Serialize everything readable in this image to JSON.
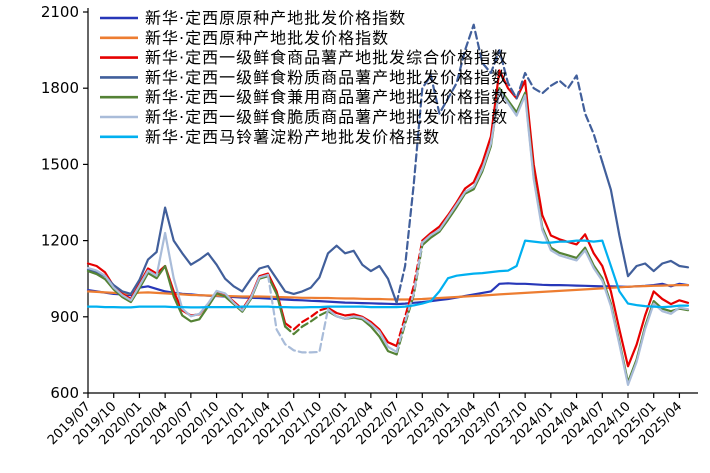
{
  "chart_data": {
    "type": "line",
    "title": "",
    "xlabel": "",
    "ylabel": "",
    "grid": false,
    "legend_position": "top-left-inside",
    "ylim": [
      600,
      2100
    ],
    "y_ticks": [
      600,
      900,
      1200,
      1500,
      1800,
      2100
    ],
    "x_tick_step": 3,
    "n_points": 71,
    "x_labels": [
      "2019/07",
      "2019/10",
      "2020/01",
      "2020/04",
      "2020/07",
      "2020/10",
      "2021/01",
      "2021/04",
      "2021/07",
      "2021/10",
      "2022/01",
      "2022/04",
      "2022/07",
      "2022/10",
      "2023/01",
      "2023/04",
      "2023/07",
      "2023/10",
      "2024/01",
      "2024/04",
      "2024/07",
      "2024/10",
      "2025/01",
      "2025/04"
    ],
    "axis_color": "#000000",
    "series": [
      {
        "id": "yuanyuanzhong",
        "name": "新华·定西原原种产地批发价格指数",
        "color": "#2737B8",
        "width": 2.2,
        "dash": [],
        "values": [
          1005,
          1000,
          995,
          990,
          988,
          985,
          1015,
          1020,
          1010,
          1000,
          995,
          990,
          988,
          985,
          983,
          982,
          980,
          978,
          976,
          975,
          974,
          972,
          970,
          968,
          966,
          965,
          963,
          962,
          960,
          958,
          956,
          955,
          954,
          953,
          952,
          951,
          950,
          952,
          955,
          958,
          962,
          966,
          970,
          976,
          982,
          988,
          994,
          1000,
          1030,
          1032,
          1030,
          1030,
          1028,
          1026,
          1025,
          1025,
          1024,
          1023,
          1022,
          1021,
          1020,
          1020,
          1019,
          1018,
          1020,
          1022,
          1025,
          1030,
          1020,
          1030,
          1025
        ]
      },
      {
        "id": "yuanzhong",
        "name": "新华·定西原种产地批发价格指数",
        "color": "#ED7D31",
        "width": 2.2,
        "dash": [],
        "values": [
          1000,
          998,
          996,
          994,
          992,
          990,
          995,
          996,
          994,
          992,
          990,
          988,
          986,
          985,
          984,
          983,
          982,
          981,
          980,
          980,
          980,
          979,
          978,
          977,
          976,
          975,
          975,
          974,
          974,
          973,
          972,
          972,
          971,
          970,
          970,
          969,
          968,
          968,
          969,
          970,
          972,
          974,
          976,
          978,
          980,
          982,
          984,
          986,
          988,
          990,
          992,
          994,
          996,
          998,
          1000,
          1002,
          1004,
          1006,
          1008,
          1010,
          1012,
          1014,
          1016,
          1018,
          1020,
          1021,
          1022,
          1023,
          1024,
          1025,
          1025
        ]
      },
      {
        "id": "xianshi-zonghe",
        "name": "新华·定西一级鲜食商品薯产地批发综合价格指数",
        "color": "#E60000",
        "width": 2.2,
        "dash": [
          [
            23,
            28
          ],
          [
            36,
            39
          ]
        ],
        "values": [
          1110,
          1100,
          1075,
          1020,
          990,
          970,
          1030,
          1090,
          1070,
          1100,
          1000,
          925,
          905,
          910,
          950,
          1000,
          990,
          960,
          930,
          980,
          1060,
          1070,
          1000,
          875,
          850,
          880,
          900,
          925,
          935,
          915,
          905,
          910,
          900,
          880,
          850,
          800,
          785,
          900,
          1020,
          1200,
          1230,
          1255,
          1300,
          1350,
          1405,
          1430,
          1505,
          1610,
          1870,
          1800,
          1760,
          1830,
          1500,
          1300,
          1220,
          1205,
          1195,
          1185,
          1225,
          1150,
          1100,
          1000,
          850,
          705,
          790,
          905,
          1000,
          970,
          950,
          965,
          955
        ]
      },
      {
        "id": "xianshi-fenzhi",
        "name": "新华·定西一级鲜食粉质商品薯产地批发价格指数",
        "color": "#415F9B",
        "width": 2.2,
        "dash": [
          [
            36,
            60
          ]
        ],
        "values": [
          1085,
          1075,
          1060,
          1025,
          1000,
          990,
          1045,
          1125,
          1155,
          1330,
          1200,
          1150,
          1105,
          1125,
          1150,
          1105,
          1050,
          1020,
          1000,
          1050,
          1090,
          1100,
          1050,
          1000,
          990,
          1000,
          1015,
          1055,
          1150,
          1180,
          1150,
          1160,
          1105,
          1080,
          1100,
          1050,
          955,
          1100,
          1420,
          1800,
          1850,
          1700,
          1760,
          1820,
          1950,
          2050,
          1900,
          1860,
          1950,
          1820,
          1760,
          1860,
          1800,
          1780,
          1810,
          1830,
          1800,
          1850,
          1700,
          1620,
          1510,
          1400,
          1220,
          1060,
          1100,
          1110,
          1080,
          1110,
          1120,
          1100,
          1095
        ]
      },
      {
        "id": "xianshi-jianyong",
        "name": "新华·定西一级鲜食兼用商品薯产地批发价格指数",
        "color": "#548235",
        "width": 2.2,
        "dash": [
          [
            23,
            28
          ],
          [
            36,
            39
          ]
        ],
        "values": [
          1080,
          1068,
          1048,
          1008,
          978,
          958,
          1012,
          1072,
          1052,
          1100,
          980,
          905,
          882,
          890,
          940,
          992,
          980,
          950,
          920,
          970,
          1050,
          1060,
          990,
          862,
          832,
          862,
          882,
          905,
          922,
          902,
          892,
          897,
          890,
          862,
          822,
          765,
          752,
          872,
          985,
          1182,
          1212,
          1235,
          1282,
          1332,
          1385,
          1402,
          1472,
          1572,
          1800,
          1752,
          1705,
          1782,
          1452,
          1252,
          1172,
          1152,
          1142,
          1132,
          1172,
          1102,
          1052,
          952,
          802,
          642,
          732,
          862,
          962,
          932,
          922,
          932,
          926
        ]
      },
      {
        "id": "xianshi-cuizhi",
        "name": "新华·定西一级鲜食脆质商品薯产地批发价格指数",
        "color": "#A9BCD9",
        "width": 2.2,
        "dash": [
          [
            21,
            28
          ],
          [
            36,
            39
          ]
        ],
        "values": [
          1092,
          1082,
          1062,
          1015,
          985,
          965,
          1022,
          1082,
          1062,
          1230,
          1052,
          932,
          902,
          912,
          952,
          1002,
          992,
          955,
          925,
          975,
          1055,
          1065,
          850,
          792,
          768,
          760,
          760,
          762,
          930,
          902,
          892,
          902,
          896,
          872,
          842,
          782,
          762,
          882,
          992,
          1192,
          1222,
          1242,
          1292,
          1342,
          1392,
          1412,
          1482,
          1582,
          1790,
          1742,
          1692,
          1772,
          1442,
          1242,
          1162,
          1142,
          1132,
          1122,
          1162,
          1092,
          1042,
          942,
          792,
          632,
          722,
          852,
          952,
          922,
          912,
          936,
          930
        ]
      },
      {
        "id": "dianfen",
        "name": "新华·定西马铃薯淀粉产地批发价格指数",
        "color": "#00B0F0",
        "width": 2.2,
        "dash": [],
        "values": [
          940,
          940,
          938,
          938,
          937,
          937,
          940,
          940,
          940,
          940,
          938,
          938,
          937,
          937,
          938,
          938,
          938,
          938,
          940,
          940,
          940,
          940,
          938,
          938,
          937,
          937,
          938,
          938,
          940,
          940,
          940,
          940,
          940,
          938,
          938,
          938,
          938,
          940,
          945,
          952,
          962,
          1000,
          1052,
          1062,
          1066,
          1070,
          1072,
          1076,
          1080,
          1082,
          1100,
          1200,
          1196,
          1192,
          1192,
          1196,
          1196,
          1200,
          1200,
          1196,
          1200,
          1100,
          1000,
          952,
          946,
          942,
          940,
          938,
          940,
          944,
          944
        ]
      }
    ]
  }
}
